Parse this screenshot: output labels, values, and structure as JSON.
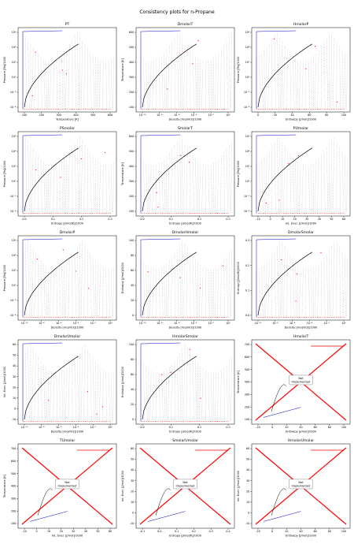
{
  "title": "Consistency plots for n-Propane",
  "colors": {
    "black": "#000000",
    "blue": "#0000cc",
    "red": "#ff0000"
  },
  "chart_data": [
    {
      "type": "line",
      "title": "PT",
      "xlabel": "Temperature [K]",
      "ylabel": "Pressure [Pa]/1000",
      "xticks": [
        "100",
        "200",
        "300",
        "400",
        "500",
        "600"
      ],
      "yticks": [
        "10⁶",
        "10⁴",
        "10²",
        "10⁰",
        "10⁻²",
        "10⁻⁴"
      ],
      "not_implemented": false
    },
    {
      "type": "line",
      "title": "DmolarT",
      "xlabel": "Density [mol/m3]/1000",
      "ylabel": "Temperature [K]",
      "xticks": [
        "10⁻¹⁰",
        "10⁻⁸",
        "10⁻⁶",
        "10⁻⁴",
        "10⁻²",
        "10⁰"
      ],
      "yticks": [
        "600",
        "500",
        "400",
        "300",
        "200",
        "100"
      ],
      "not_implemented": false
    },
    {
      "type": "line",
      "title": "HmolarP",
      "xlabel": "Enthalpy [J/mol]/1000",
      "ylabel": "Pressure [Pa]/1000",
      "xticks": [
        "0",
        "20",
        "40",
        "60",
        "80",
        "100"
      ],
      "yticks": [
        "10⁶",
        "10⁴",
        "10²",
        "10⁰",
        "10⁻²",
        "10⁻⁴"
      ],
      "not_implemented": false
    },
    {
      "type": "line",
      "title": "PSmolar",
      "xlabel": "Entropy [J/mol/K]/1000",
      "ylabel": "Pressure [Pa]/1000",
      "xticks": [
        "0.0",
        "0.1",
        "0.2",
        "0.3"
      ],
      "yticks": [
        "10⁶",
        "10⁴",
        "10²",
        "10⁰",
        "10⁻²",
        "10⁻⁴"
      ],
      "not_implemented": false
    },
    {
      "type": "line",
      "title": "SmolarT",
      "xlabel": "Entropy [J/mol/K]/1000",
      "ylabel": "Temperature [K]",
      "xticks": [
        "0.0",
        "0.1",
        "0.2",
        "0.3"
      ],
      "yticks": [
        "600",
        "500",
        "400",
        "300",
        "200",
        "100"
      ],
      "not_implemented": false
    },
    {
      "type": "line",
      "title": "PUmolar",
      "xlabel": "Int. Ener. [J/mol]/1000",
      "ylabel": "Pressure [Pa]/1000",
      "xticks": [
        "-10",
        "0",
        "10",
        "20",
        "30",
        "40",
        "50",
        "60"
      ],
      "yticks": [
        "10⁶",
        "10⁴",
        "10²",
        "10⁰",
        "10⁻²",
        "10⁻⁴"
      ],
      "not_implemented": false
    },
    {
      "type": "line",
      "title": "DmolarP",
      "xlabel": "Density [mol/m3]/1000",
      "ylabel": "Pressure [Pa]/1000",
      "xticks": [
        "10⁻¹⁰",
        "10⁻⁸",
        "10⁻⁶",
        "10⁻⁴",
        "10⁻²",
        "10⁰"
      ],
      "yticks": [
        "10⁶",
        "10⁴",
        "10²",
        "10⁰",
        "10⁻²",
        "10⁻⁴"
      ],
      "not_implemented": false
    },
    {
      "type": "line",
      "title": "DmolarHmolar",
      "xlabel": "Density [mol/m3]/1000",
      "ylabel": "Enthalpy [J/mol]/1000",
      "xticks": [
        "10⁻¹⁰",
        "10⁻⁸",
        "10⁻⁶",
        "10⁻⁴",
        "10⁻²",
        "10⁰"
      ],
      "yticks": [
        "100",
        "80",
        "60",
        "40",
        "20",
        "0"
      ],
      "not_implemented": false
    },
    {
      "type": "line",
      "title": "DmolarSmolar",
      "xlabel": "Density [mol/m3]/1000",
      "ylabel": "Entropy [J/mol/K]/1000",
      "xticks": [
        "10⁻¹⁰",
        "10⁻⁸",
        "10⁻⁶",
        "10⁻⁴",
        "10⁻²",
        "10⁰"
      ],
      "yticks": [
        "0.3",
        "0.2",
        "0.1",
        "0.0"
      ],
      "not_implemented": false
    },
    {
      "type": "line",
      "title": "DmolarUmolar",
      "xlabel": "Density [mol/m3]/1000",
      "ylabel": "Int. Ener. [J/mol]/1000",
      "xticks": [
        "10⁻¹⁰",
        "10⁻⁸",
        "10⁻⁶",
        "10⁻⁴",
        "10⁻²",
        "10⁰"
      ],
      "yticks": [
        "60",
        "50",
        "40",
        "30",
        "20",
        "10",
        "0",
        "-10"
      ],
      "not_implemented": false
    },
    {
      "type": "line",
      "title": "HmolarSmolar",
      "xlabel": "Entropy [J/mol/K]/1000",
      "ylabel": "Enthalpy [J/mol]/1000",
      "xticks": [
        "0.0",
        "0.1",
        "0.2",
        "0.3"
      ],
      "yticks": [
        "100",
        "80",
        "60",
        "40",
        "20",
        "0"
      ],
      "not_implemented": false
    },
    {
      "type": "line",
      "title": "HmolarT",
      "xlabel": "Enthalpy [J/mol]/1000",
      "ylabel": "Temperature [K]",
      "xticks": [
        "-20",
        "0",
        "20",
        "40",
        "60",
        "80",
        "100"
      ],
      "yticks": [
        "700",
        "600",
        "500",
        "400",
        "300",
        "200",
        "100"
      ],
      "not_implemented": true
    },
    {
      "type": "line",
      "title": "TUmolar",
      "xlabel": "Int. Ener. [J/mol]/1000",
      "ylabel": "Temperature [K]",
      "xticks": [
        "-10",
        "0",
        "10",
        "20",
        "30",
        "40",
        "50",
        "60"
      ],
      "yticks": [
        "700",
        "600",
        "500",
        "400",
        "300",
        "200",
        "100"
      ],
      "not_implemented": true
    },
    {
      "type": "line",
      "title": "SmolarUmolar",
      "xlabel": "Entropy [J/mol/K]/1000",
      "ylabel": "Int. Ener. [J/mol]/1000",
      "xticks": [
        "-0.1",
        "0.0",
        "0.1",
        "0.2",
        "0.3",
        "0.4"
      ],
      "yticks": [
        "60",
        "50",
        "40",
        "30",
        "20",
        "10",
        "0",
        "-10"
      ],
      "not_implemented": true
    },
    {
      "type": "line",
      "title": "HmolarUmolar",
      "xlabel": "Enthalpy [J/mol]/1000",
      "ylabel": "Int. Ener. [J/mol]/1000",
      "xticks": [
        "-20",
        "0",
        "20",
        "40",
        "60",
        "80",
        "100"
      ],
      "yticks": [
        "60",
        "50",
        "40",
        "30",
        "20",
        "10",
        "0",
        "-10"
      ],
      "not_implemented": true
    }
  ],
  "not_implemented_text": [
    "Not",
    "Implemented"
  ]
}
